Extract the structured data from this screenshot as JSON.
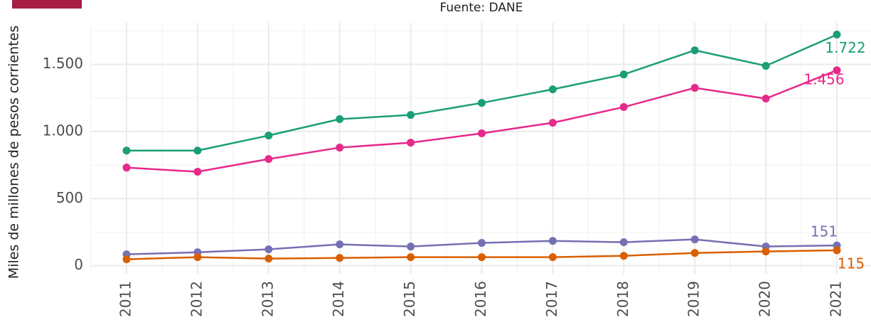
{
  "chart_data": {
    "type": "line",
    "subtitle": "Fuente: DANE",
    "y_label": "Miles de millones de pesos corrientes",
    "categories": [
      "2011",
      "2012",
      "2013",
      "2014",
      "2015",
      "2016",
      "2017",
      "2018",
      "2019",
      "2020",
      "2021"
    ],
    "series": [
      {
        "color": "#1b9e77",
        "values": [
          858,
          858,
          970,
          1092,
          1123,
          1213,
          1314,
          1425,
          1605,
          1489,
          1722
        ],
        "value_labels": [
          null,
          null,
          null,
          null,
          null,
          null,
          null,
          null,
          null,
          null,
          "1.722"
        ]
      },
      {
        "color": "#e7298a",
        "values": [
          731,
          700,
          795,
          880,
          917,
          986,
          1065,
          1182,
          1325,
          1245,
          1456
        ],
        "value_labels": [
          null,
          null,
          null,
          null,
          null,
          null,
          null,
          null,
          null,
          null,
          "1.456"
        ]
      },
      {
        "color": "#7570b3",
        "values": [
          85,
          100,
          122,
          159,
          143,
          170,
          185,
          175,
          196,
          143,
          151
        ]
      },
      {
        "color": "#d95f02",
        "values": [
          48,
          64,
          53,
          58,
          64,
          64,
          64,
          74,
          95,
          106,
          115
        ]
      }
    ],
    "ylim": [
      -60,
      1810
    ],
    "yticks": [
      0,
      500,
      {
        "value": 1000,
        "label": "1.000"
      },
      {
        "value": 1500,
        "label": "1.500"
      }
    ],
    "yminorticks": [
      250,
      750,
      1250,
      1750
    ],
    "grid": true
  }
}
